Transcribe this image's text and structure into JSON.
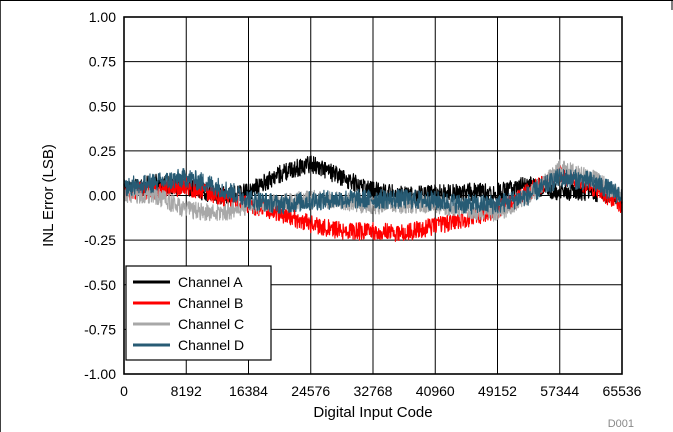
{
  "chart_data": {
    "type": "line",
    "xlabel": "Digital Input Code",
    "ylabel": "INL Error (LSB)",
    "xlim": [
      0,
      65536
    ],
    "ylim": [
      -1.0,
      1.0
    ],
    "x_ticks": [
      0,
      8192,
      16384,
      24576,
      32768,
      40960,
      49152,
      57344,
      65536
    ],
    "x_tick_labels": [
      "0",
      "8192",
      "16384",
      "24576",
      "32768",
      "40960",
      "49152",
      "57344",
      "65536"
    ],
    "y_ticks": [
      1.0,
      0.75,
      0.5,
      0.25,
      0.0,
      -0.25,
      -0.5,
      -0.75,
      -1.0
    ],
    "y_tick_labels": [
      "1.00",
      "0.75",
      "0.50",
      "0.25",
      "0.00",
      "-0.25",
      "-0.50",
      "-0.75",
      "-1.00"
    ],
    "grid": true,
    "legend_position": "bottom-left",
    "note": "D001",
    "series": [
      {
        "name": "Channel A",
        "color": "#000000",
        "noise": 0.05,
        "x": [
          0,
          4096,
          8192,
          12288,
          16384,
          20480,
          24576,
          28672,
          32768,
          36864,
          40960,
          45056,
          49152,
          53248,
          57344,
          61440,
          65536
        ],
        "y": [
          0.03,
          0.07,
          0.05,
          0.0,
          0.02,
          0.12,
          0.18,
          0.1,
          0.03,
          0.0,
          0.01,
          0.02,
          0.02,
          0.06,
          0.02,
          0.02,
          -0.02
        ]
      },
      {
        "name": "Channel B",
        "color": "#ff0000",
        "noise": 0.05,
        "x": [
          0,
          4096,
          8192,
          12288,
          16384,
          20480,
          24576,
          28672,
          32768,
          36864,
          40960,
          45056,
          49152,
          53248,
          57344,
          61440,
          65536
        ],
        "y": [
          0.02,
          0.03,
          0.05,
          0.0,
          -0.05,
          -0.1,
          -0.16,
          -0.2,
          -0.2,
          -0.21,
          -0.17,
          -0.13,
          -0.08,
          0.02,
          0.12,
          0.05,
          -0.05
        ]
      },
      {
        "name": "Channel C",
        "color": "#a8a8a8",
        "noise": 0.05,
        "x": [
          0,
          4096,
          8192,
          12288,
          16384,
          20480,
          24576,
          28672,
          32768,
          36864,
          40960,
          45056,
          49152,
          53248,
          57344,
          61440,
          65536
        ],
        "y": [
          0.0,
          0.0,
          -0.08,
          -0.1,
          -0.06,
          -0.04,
          -0.02,
          -0.03,
          -0.06,
          -0.05,
          -0.05,
          -0.08,
          -0.1,
          0.0,
          0.15,
          0.1,
          0.0
        ]
      },
      {
        "name": "Channel D",
        "color": "#275b74",
        "noise": 0.055,
        "x": [
          0,
          4096,
          8192,
          12288,
          16384,
          20480,
          24576,
          28672,
          32768,
          36864,
          40960,
          45056,
          49152,
          53248,
          57344,
          61440,
          65536
        ],
        "y": [
          0.05,
          0.07,
          0.1,
          0.05,
          -0.02,
          -0.05,
          -0.03,
          -0.02,
          -0.02,
          -0.02,
          -0.03,
          -0.05,
          -0.05,
          0.0,
          0.1,
          0.08,
          0.0
        ]
      }
    ]
  }
}
